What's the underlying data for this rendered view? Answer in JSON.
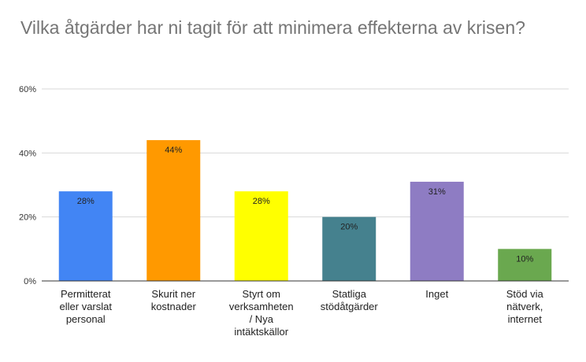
{
  "chart_data": {
    "type": "bar",
    "title": "Vilka åtgärder har ni tagit för att minimera effekterna av krisen?",
    "categories": [
      "Permitterat eller varslat personal",
      "Skurit ner kostnader",
      "Styrt om verksamheten / Nya intäktskällor",
      "Statliga stödåtgärder",
      "Inget",
      "Stöd via nätverk, internet"
    ],
    "category_lines": [
      [
        "Permitterat",
        "eller varslat",
        "personal"
      ],
      [
        "Skurit ner",
        "kostnader"
      ],
      [
        "Styrt om",
        "verksamheten",
        "/ Nya",
        "intäktskällor"
      ],
      [
        "Statliga",
        "stödåtgärder"
      ],
      [
        "Inget"
      ],
      [
        "Stöd via",
        "nätverk,",
        "internet"
      ]
    ],
    "values": [
      28,
      44,
      28,
      20,
      31,
      10
    ],
    "data_labels": [
      "28%",
      "44%",
      "28%",
      "20%",
      "31%",
      "10%"
    ],
    "colors": [
      "#4285f4",
      "#ff9900",
      "#ffff00",
      "#45818e",
      "#8e7cc3",
      "#6aa84f"
    ],
    "ylim": [
      0,
      60
    ],
    "yticks": [
      0,
      20,
      40,
      60
    ],
    "ytick_labels": [
      "0%",
      "20%",
      "40%",
      "60%"
    ],
    "grid": true,
    "legend": "none",
    "xlabel": "",
    "ylabel": ""
  }
}
